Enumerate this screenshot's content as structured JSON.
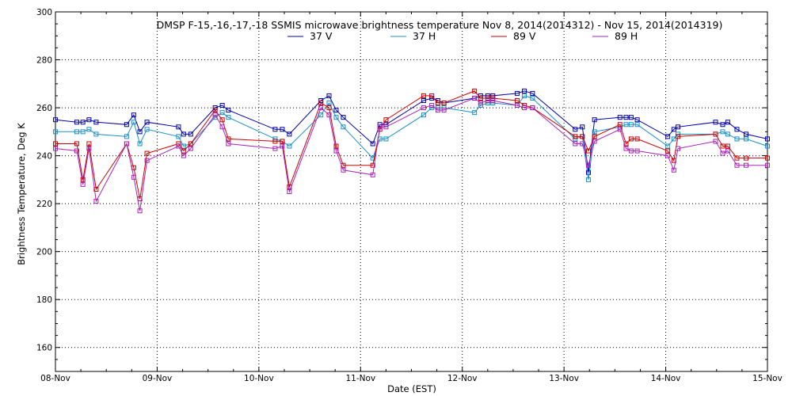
{
  "chart_data": {
    "type": "line",
    "title": "DMSP F-15,-16,-17,-18 SSMIS microwave brightness temperature Nov  8, 2014(2014312) - Nov 15, 2014(2014319)",
    "xlabel": "Date (EST)",
    "ylabel": "Brightness Temperature, Deg K",
    "xlim": [
      0,
      7
    ],
    "ylim": [
      150,
      300
    ],
    "grid": true,
    "legend_position": "top-center",
    "x_tick_values": [
      0,
      1,
      2,
      3,
      4,
      5,
      6,
      7
    ],
    "x_tick_labels": [
      "08-Nov",
      "09-Nov",
      "10-Nov",
      "11-Nov",
      "12-Nov",
      "13-Nov",
      "14-Nov",
      "15-Nov"
    ],
    "y_tick_values": [
      160,
      180,
      200,
      220,
      240,
      260,
      280,
      300
    ],
    "y_tick_labels": [
      "160",
      "180",
      "200",
      "220",
      "240",
      "260",
      "280",
      "300"
    ],
    "series": [
      {
        "name": "37 V",
        "color": "#0000aa",
        "points": [
          [
            0.0,
            255
          ],
          [
            0.21,
            254
          ],
          [
            0.27,
            254
          ],
          [
            0.33,
            255
          ],
          [
            0.4,
            254
          ],
          [
            0.7,
            253
          ],
          [
            0.77,
            257
          ],
          [
            0.83,
            250
          ],
          [
            0.9,
            254
          ],
          [
            1.21,
            252
          ],
          [
            1.26,
            249
          ],
          [
            1.33,
            249
          ],
          [
            1.57,
            260
          ],
          [
            1.64,
            261
          ],
          [
            1.7,
            259
          ],
          [
            2.16,
            251
          ],
          [
            2.23,
            251
          ],
          [
            2.3,
            249
          ],
          [
            2.61,
            263
          ],
          [
            2.69,
            265
          ],
          [
            2.76,
            259
          ],
          [
            2.83,
            256
          ],
          [
            3.12,
            245
          ],
          [
            3.19,
            253
          ],
          [
            3.25,
            253
          ],
          [
            3.62,
            263
          ],
          [
            3.7,
            264
          ],
          [
            3.76,
            263
          ],
          [
            3.82,
            262
          ],
          [
            4.12,
            264
          ],
          [
            4.18,
            265
          ],
          [
            4.25,
            265
          ],
          [
            4.3,
            265
          ],
          [
            4.54,
            266
          ],
          [
            4.61,
            267
          ],
          [
            4.69,
            266
          ],
          [
            5.11,
            251
          ],
          [
            5.18,
            252
          ],
          [
            5.24,
            233
          ],
          [
            5.3,
            255
          ],
          [
            5.55,
            256
          ],
          [
            5.61,
            256
          ],
          [
            5.66,
            256
          ],
          [
            5.72,
            255
          ],
          [
            6.02,
            248
          ],
          [
            6.08,
            251
          ],
          [
            6.12,
            252
          ],
          [
            6.49,
            254
          ],
          [
            6.56,
            253
          ],
          [
            6.61,
            254
          ],
          [
            6.7,
            251
          ],
          [
            6.79,
            249
          ],
          [
            7.0,
            247
          ]
        ]
      },
      {
        "name": "37 H",
        "color": "#1a8fc8",
        "points": [
          [
            0.0,
            250
          ],
          [
            0.21,
            250
          ],
          [
            0.27,
            250
          ],
          [
            0.33,
            251
          ],
          [
            0.4,
            249
          ],
          [
            0.7,
            248
          ],
          [
            0.77,
            254
          ],
          [
            0.83,
            245
          ],
          [
            0.9,
            251
          ],
          [
            1.21,
            248
          ],
          [
            1.26,
            244
          ],
          [
            1.33,
            245
          ],
          [
            1.57,
            256
          ],
          [
            1.64,
            258
          ],
          [
            1.7,
            256
          ],
          [
            2.16,
            247
          ],
          [
            2.23,
            246
          ],
          [
            2.3,
            244
          ],
          [
            2.61,
            257
          ],
          [
            2.69,
            262
          ],
          [
            2.76,
            256
          ],
          [
            2.83,
            252
          ],
          [
            3.12,
            239
          ],
          [
            3.19,
            247
          ],
          [
            3.25,
            247
          ],
          [
            3.62,
            257
          ],
          [
            3.7,
            260
          ],
          [
            3.76,
            260
          ],
          [
            3.82,
            260
          ],
          [
            4.12,
            258
          ],
          [
            4.18,
            261
          ],
          [
            4.25,
            262
          ],
          [
            4.3,
            262
          ],
          [
            4.54,
            261
          ],
          [
            4.61,
            265
          ],
          [
            4.69,
            264
          ],
          [
            5.11,
            247
          ],
          [
            5.18,
            248
          ],
          [
            5.24,
            230
          ],
          [
            5.3,
            250
          ],
          [
            5.55,
            252
          ],
          [
            5.61,
            253
          ],
          [
            5.66,
            253
          ],
          [
            5.72,
            253
          ],
          [
            6.02,
            244
          ],
          [
            6.08,
            247
          ],
          [
            6.12,
            249
          ],
          [
            6.49,
            249
          ],
          [
            6.56,
            250
          ],
          [
            6.61,
            249
          ],
          [
            6.7,
            247
          ],
          [
            6.79,
            247
          ],
          [
            7.0,
            244
          ]
        ]
      },
      {
        "name": "89 V",
        "color": "#cc0000",
        "points": [
          [
            0.0,
            245
          ],
          [
            0.21,
            245
          ],
          [
            0.27,
            230
          ],
          [
            0.33,
            245
          ],
          [
            0.4,
            226
          ],
          [
            0.7,
            245
          ],
          [
            0.77,
            235
          ],
          [
            0.83,
            222
          ],
          [
            0.9,
            241
          ],
          [
            1.21,
            245
          ],
          [
            1.26,
            242
          ],
          [
            1.33,
            245
          ],
          [
            1.57,
            259
          ],
          [
            1.64,
            255
          ],
          [
            1.7,
            247
          ],
          [
            2.16,
            246
          ],
          [
            2.23,
            246
          ],
          [
            2.3,
            227
          ],
          [
            2.61,
            262
          ],
          [
            2.69,
            260
          ],
          [
            2.76,
            244
          ],
          [
            2.83,
            236
          ],
          [
            3.12,
            236
          ],
          [
            3.19,
            251
          ],
          [
            3.25,
            255
          ],
          [
            3.62,
            265
          ],
          [
            3.7,
            265
          ],
          [
            3.76,
            262
          ],
          [
            3.82,
            262
          ],
          [
            4.12,
            267
          ],
          [
            4.18,
            264
          ],
          [
            4.25,
            264
          ],
          [
            4.3,
            264
          ],
          [
            4.54,
            263
          ],
          [
            4.61,
            261
          ],
          [
            4.69,
            260
          ],
          [
            5.11,
            248
          ],
          [
            5.18,
            248
          ],
          [
            5.24,
            242
          ],
          [
            5.3,
            248
          ],
          [
            5.55,
            253
          ],
          [
            5.61,
            245
          ],
          [
            5.66,
            247
          ],
          [
            5.72,
            247
          ],
          [
            6.02,
            242
          ],
          [
            6.08,
            238
          ],
          [
            6.12,
            248
          ],
          [
            6.49,
            249
          ],
          [
            6.56,
            244
          ],
          [
            6.61,
            244
          ],
          [
            6.7,
            239
          ],
          [
            6.79,
            239
          ],
          [
            7.0,
            239
          ]
        ]
      },
      {
        "name": "89 H",
        "color": "#aa22bb",
        "points": [
          [
            0.0,
            243
          ],
          [
            0.21,
            242
          ],
          [
            0.27,
            228
          ],
          [
            0.33,
            243
          ],
          [
            0.4,
            221
          ],
          [
            0.7,
            245
          ],
          [
            0.77,
            231
          ],
          [
            0.83,
            217
          ],
          [
            0.9,
            238
          ],
          [
            1.21,
            244
          ],
          [
            1.26,
            240
          ],
          [
            1.33,
            243
          ],
          [
            1.57,
            257
          ],
          [
            1.64,
            252
          ],
          [
            1.7,
            245
          ],
          [
            2.16,
            243
          ],
          [
            2.23,
            244
          ],
          [
            2.3,
            225
          ],
          [
            2.61,
            260
          ],
          [
            2.69,
            257
          ],
          [
            2.76,
            242
          ],
          [
            2.83,
            234
          ],
          [
            3.12,
            232
          ],
          [
            3.19,
            252
          ],
          [
            3.25,
            252
          ],
          [
            3.62,
            260
          ],
          [
            3.7,
            261
          ],
          [
            3.76,
            259
          ],
          [
            3.82,
            259
          ],
          [
            4.12,
            264
          ],
          [
            4.18,
            262
          ],
          [
            4.25,
            263
          ],
          [
            4.3,
            263
          ],
          [
            4.54,
            261
          ],
          [
            4.61,
            260
          ],
          [
            4.69,
            260
          ],
          [
            5.11,
            245
          ],
          [
            5.18,
            245
          ],
          [
            5.24,
            236
          ],
          [
            5.3,
            246
          ],
          [
            5.55,
            251
          ],
          [
            5.61,
            243
          ],
          [
            5.66,
            242
          ],
          [
            5.72,
            242
          ],
          [
            6.02,
            240
          ],
          [
            6.08,
            234
          ],
          [
            6.12,
            243
          ],
          [
            6.49,
            246
          ],
          [
            6.56,
            241
          ],
          [
            6.61,
            242
          ],
          [
            6.7,
            236
          ],
          [
            6.79,
            236
          ],
          [
            7.0,
            236
          ]
        ]
      }
    ]
  }
}
